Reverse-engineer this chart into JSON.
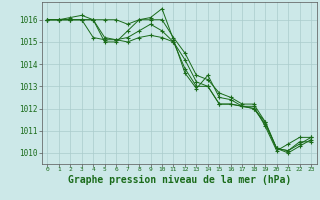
{
  "background_color": "#cce8e8",
  "grid_color": "#aacccc",
  "line_color": "#1a6b1a",
  "marker": "+",
  "xlabel": "Graphe pression niveau de la mer (hPa)",
  "xlabel_fontsize": 7,
  "xlim": [
    -0.5,
    23.5
  ],
  "ylim": [
    1009.5,
    1016.8
  ],
  "yticks": [
    1010,
    1011,
    1012,
    1013,
    1014,
    1015,
    1016
  ],
  "xticks": [
    0,
    1,
    2,
    3,
    4,
    5,
    6,
    7,
    8,
    9,
    10,
    11,
    12,
    13,
    14,
    15,
    16,
    17,
    18,
    19,
    20,
    21,
    22,
    23
  ],
  "series": [
    [
      1016.0,
      1016.0,
      1016.1,
      1016.2,
      1016.0,
      1016.0,
      1016.0,
      1015.8,
      1016.0,
      1016.1,
      1016.5,
      1015.1,
      1013.6,
      1012.9,
      1013.5,
      1012.5,
      1012.4,
      1012.1,
      1012.1,
      1011.2,
      1010.1,
      1010.4,
      1010.7,
      1010.7
    ],
    [
      1016.0,
      1016.0,
      1016.0,
      1016.0,
      1016.0,
      1015.2,
      1015.1,
      1015.2,
      1015.5,
      1015.8,
      1015.5,
      1015.0,
      1013.8,
      1013.0,
      1013.0,
      1012.2,
      1012.2,
      1012.1,
      1012.0,
      1011.4,
      1010.2,
      1010.1,
      1010.5,
      1010.5
    ],
    [
      1016.0,
      1016.0,
      1016.0,
      1016.0,
      1015.2,
      1015.1,
      1015.1,
      1015.0,
      1015.2,
      1015.3,
      1015.2,
      1015.0,
      1014.2,
      1013.2,
      1013.0,
      1012.2,
      1012.2,
      1012.1,
      1012.0,
      1011.3,
      1010.2,
      1010.0,
      1010.3,
      1010.6
    ],
    [
      1016.0,
      1016.0,
      1016.0,
      1016.0,
      1016.0,
      1015.0,
      1015.0,
      1015.5,
      1016.0,
      1016.0,
      1016.0,
      1015.2,
      1014.5,
      1013.5,
      1013.3,
      1012.7,
      1012.5,
      1012.2,
      1012.2,
      1011.4,
      1010.2,
      1010.1,
      1010.4,
      1010.7
    ]
  ]
}
